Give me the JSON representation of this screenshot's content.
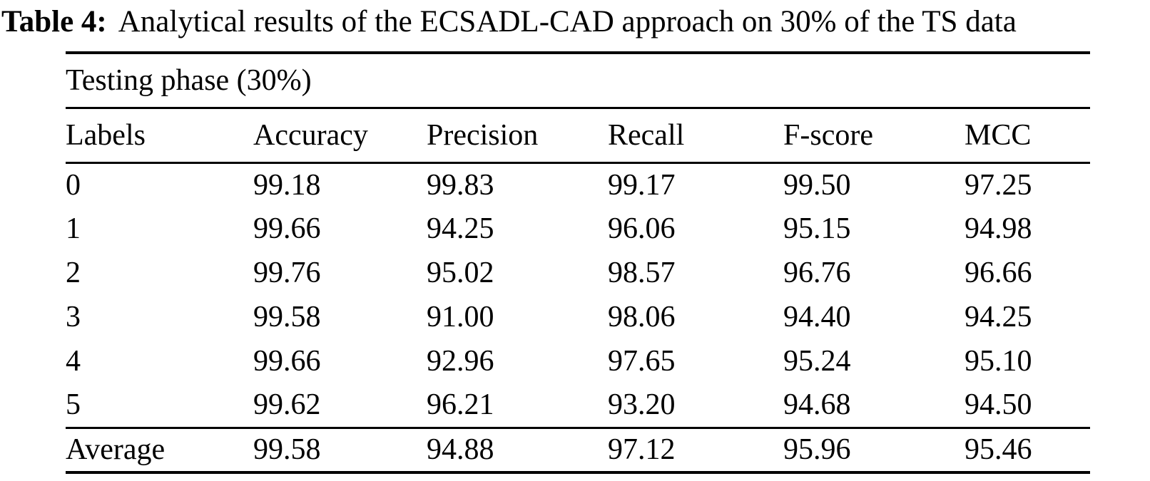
{
  "page": {
    "background_color": "#ffffff",
    "text_color": "#000000"
  },
  "caption": {
    "label": "Table 4:",
    "text": "Analytical results of the ECSADL-CAD approach on 30% of the TS data"
  },
  "table": {
    "span_header": "Testing phase (30%)",
    "columns": [
      "Labels",
      "Accuracy",
      "Precision",
      "Recall",
      "F-score",
      "MCC"
    ],
    "rows": [
      {
        "label": "0",
        "cells": [
          "99.18",
          "99.83",
          "99.17",
          "99.50",
          "97.25"
        ]
      },
      {
        "label": "1",
        "cells": [
          "99.66",
          "94.25",
          "96.06",
          "95.15",
          "94.98"
        ]
      },
      {
        "label": "2",
        "cells": [
          "99.76",
          "95.02",
          "98.57",
          "96.76",
          "96.66"
        ]
      },
      {
        "label": "3",
        "cells": [
          "99.58",
          "91.00",
          "98.06",
          "94.40",
          "94.25"
        ]
      },
      {
        "label": "4",
        "cells": [
          "99.66",
          "92.96",
          "97.65",
          "95.24",
          "95.10"
        ]
      },
      {
        "label": "5",
        "cells": [
          "99.62",
          "96.21",
          "93.20",
          "94.68",
          "94.50"
        ]
      }
    ],
    "average_row": {
      "label": "Average",
      "cells": [
        "99.58",
        "94.88",
        "97.12",
        "95.96",
        "95.46"
      ]
    }
  }
}
